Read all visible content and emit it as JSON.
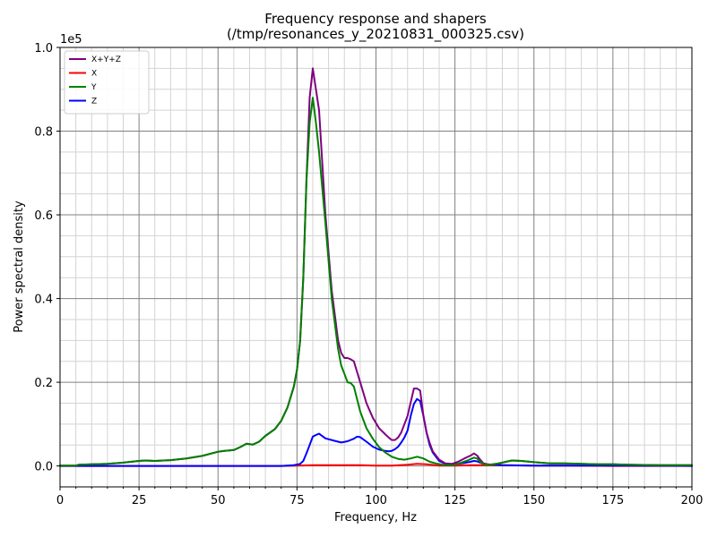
{
  "chart_data": {
    "type": "line",
    "title": "Frequency response and shapers",
    "subtitle": "(/tmp/resonances_y_20210831_000325.csv)",
    "xlabel": "Frequency, Hz",
    "ylabel": "Power spectral density",
    "y_multiplier": "1e5",
    "xlim": [
      0,
      200
    ],
    "ylim": [
      -0.05,
      1.0
    ],
    "x_ticks": [
      "0",
      "25",
      "50",
      "75",
      "100",
      "125",
      "150",
      "175",
      "200"
    ],
    "y_ticks": [
      "0.0",
      "0.2",
      "0.4",
      "0.6",
      "0.8",
      "1.0"
    ],
    "grid": "major and minor",
    "legend_position": "top-left",
    "series": [
      {
        "name": "X+Y+Z",
        "color": "#800080",
        "x": [
          0,
          5,
          6,
          10,
          15,
          20,
          25,
          27,
          30,
          35,
          40,
          45,
          50,
          52,
          55,
          57,
          59,
          61,
          63,
          65,
          68,
          70,
          72,
          74,
          75,
          76,
          77,
          78,
          79,
          80,
          81,
          82,
          84,
          86,
          88,
          89,
          90,
          91,
          92,
          93,
          95,
          97,
          99,
          101,
          103,
          104,
          105,
          106,
          107,
          108,
          110,
          112,
          113,
          114,
          115,
          116,
          117,
          118,
          120,
          122,
          124,
          126,
          128,
          130,
          131,
          132,
          133,
          134,
          136,
          138,
          140,
          143,
          146,
          150,
          155,
          160,
          165,
          170,
          175,
          180,
          190,
          200
        ],
        "y": [
          0.001,
          0.001,
          0.003,
          0.004,
          0.005,
          0.008,
          0.012,
          0.013,
          0.012,
          0.014,
          0.018,
          0.024,
          0.034,
          0.036,
          0.038,
          0.045,
          0.053,
          0.051,
          0.058,
          0.072,
          0.088,
          0.108,
          0.14,
          0.19,
          0.23,
          0.3,
          0.45,
          0.68,
          0.88,
          0.95,
          0.9,
          0.85,
          0.6,
          0.42,
          0.3,
          0.27,
          0.258,
          0.258,
          0.255,
          0.25,
          0.2,
          0.15,
          0.115,
          0.09,
          0.075,
          0.068,
          0.062,
          0.062,
          0.068,
          0.08,
          0.12,
          0.185,
          0.185,
          0.18,
          0.12,
          0.08,
          0.055,
          0.035,
          0.015,
          0.006,
          0.005,
          0.01,
          0.018,
          0.025,
          0.03,
          0.025,
          0.015,
          0.006,
          0.003,
          0.005,
          0.008,
          0.013,
          0.012,
          0.009,
          0.006,
          0.006,
          0.005,
          0.004,
          0.004,
          0.003,
          0.002,
          0.002
        ]
      },
      {
        "name": "X",
        "color": "#ff0000",
        "x": [
          0,
          20,
          40,
          60,
          70,
          75,
          80,
          85,
          90,
          95,
          100,
          105,
          110,
          113,
          116,
          120,
          125,
          130,
          135,
          140,
          150,
          160,
          175,
          200
        ],
        "y": [
          0.0,
          0.0,
          0.0,
          0.0,
          0.0,
          0.001,
          0.002,
          0.002,
          0.002,
          0.002,
          0.001,
          0.001,
          0.003,
          0.005,
          0.004,
          0.001,
          0.001,
          0.002,
          0.002,
          0.002,
          0.001,
          0.001,
          0.0,
          0.0
        ]
      },
      {
        "name": "Y",
        "color": "#008000",
        "x": [
          0,
          5,
          6,
          10,
          15,
          20,
          25,
          27,
          30,
          35,
          40,
          45,
          50,
          52,
          55,
          57,
          59,
          61,
          63,
          65,
          68,
          70,
          72,
          74,
          75,
          76,
          77,
          78,
          79,
          80,
          81,
          82,
          84,
          86,
          88,
          89,
          90,
          91,
          92,
          93,
          95,
          97,
          99,
          101,
          103,
          105,
          107,
          109,
          111,
          113,
          115,
          117,
          119,
          121,
          123,
          125,
          127,
          129,
          131,
          132,
          133,
          134,
          136,
          138,
          140,
          143,
          146,
          150,
          155,
          160,
          165,
          170,
          175,
          180,
          190,
          200
        ],
        "y": [
          0.001,
          0.001,
          0.003,
          0.004,
          0.005,
          0.008,
          0.012,
          0.013,
          0.012,
          0.014,
          0.018,
          0.024,
          0.034,
          0.036,
          0.038,
          0.045,
          0.053,
          0.051,
          0.058,
          0.072,
          0.088,
          0.108,
          0.14,
          0.19,
          0.23,
          0.3,
          0.45,
          0.68,
          0.82,
          0.88,
          0.82,
          0.75,
          0.58,
          0.4,
          0.28,
          0.24,
          0.22,
          0.2,
          0.198,
          0.19,
          0.13,
          0.09,
          0.065,
          0.045,
          0.032,
          0.022,
          0.017,
          0.015,
          0.018,
          0.022,
          0.018,
          0.01,
          0.006,
          0.003,
          0.002,
          0.003,
          0.008,
          0.013,
          0.02,
          0.018,
          0.01,
          0.004,
          0.003,
          0.005,
          0.008,
          0.013,
          0.012,
          0.009,
          0.006,
          0.006,
          0.005,
          0.004,
          0.004,
          0.003,
          0.002,
          0.002
        ]
      },
      {
        "name": "Z",
        "color": "#0000ff",
        "x": [
          0,
          20,
          40,
          60,
          70,
          74,
          76,
          77,
          78,
          79,
          80,
          81,
          82,
          84,
          87,
          89,
          91,
          93,
          94,
          95,
          97,
          99,
          101,
          103,
          104,
          105,
          106,
          107,
          108,
          109,
          110,
          111,
          112,
          113,
          114,
          115,
          116,
          117,
          118,
          120,
          122,
          124,
          126,
          128,
          130,
          131,
          132,
          133,
          135,
          140,
          150,
          160,
          175,
          200
        ],
        "y": [
          0.0,
          0.0,
          0.0,
          0.0,
          0.0,
          0.002,
          0.005,
          0.012,
          0.03,
          0.05,
          0.07,
          0.074,
          0.077,
          0.066,
          0.06,
          0.056,
          0.059,
          0.065,
          0.07,
          0.069,
          0.058,
          0.046,
          0.039,
          0.036,
          0.035,
          0.036,
          0.04,
          0.046,
          0.056,
          0.068,
          0.085,
          0.12,
          0.148,
          0.16,
          0.155,
          0.12,
          0.08,
          0.05,
          0.032,
          0.012,
          0.005,
          0.004,
          0.005,
          0.007,
          0.01,
          0.012,
          0.011,
          0.008,
          0.004,
          0.002,
          0.001,
          0.001,
          0.001,
          0.0
        ]
      }
    ]
  }
}
